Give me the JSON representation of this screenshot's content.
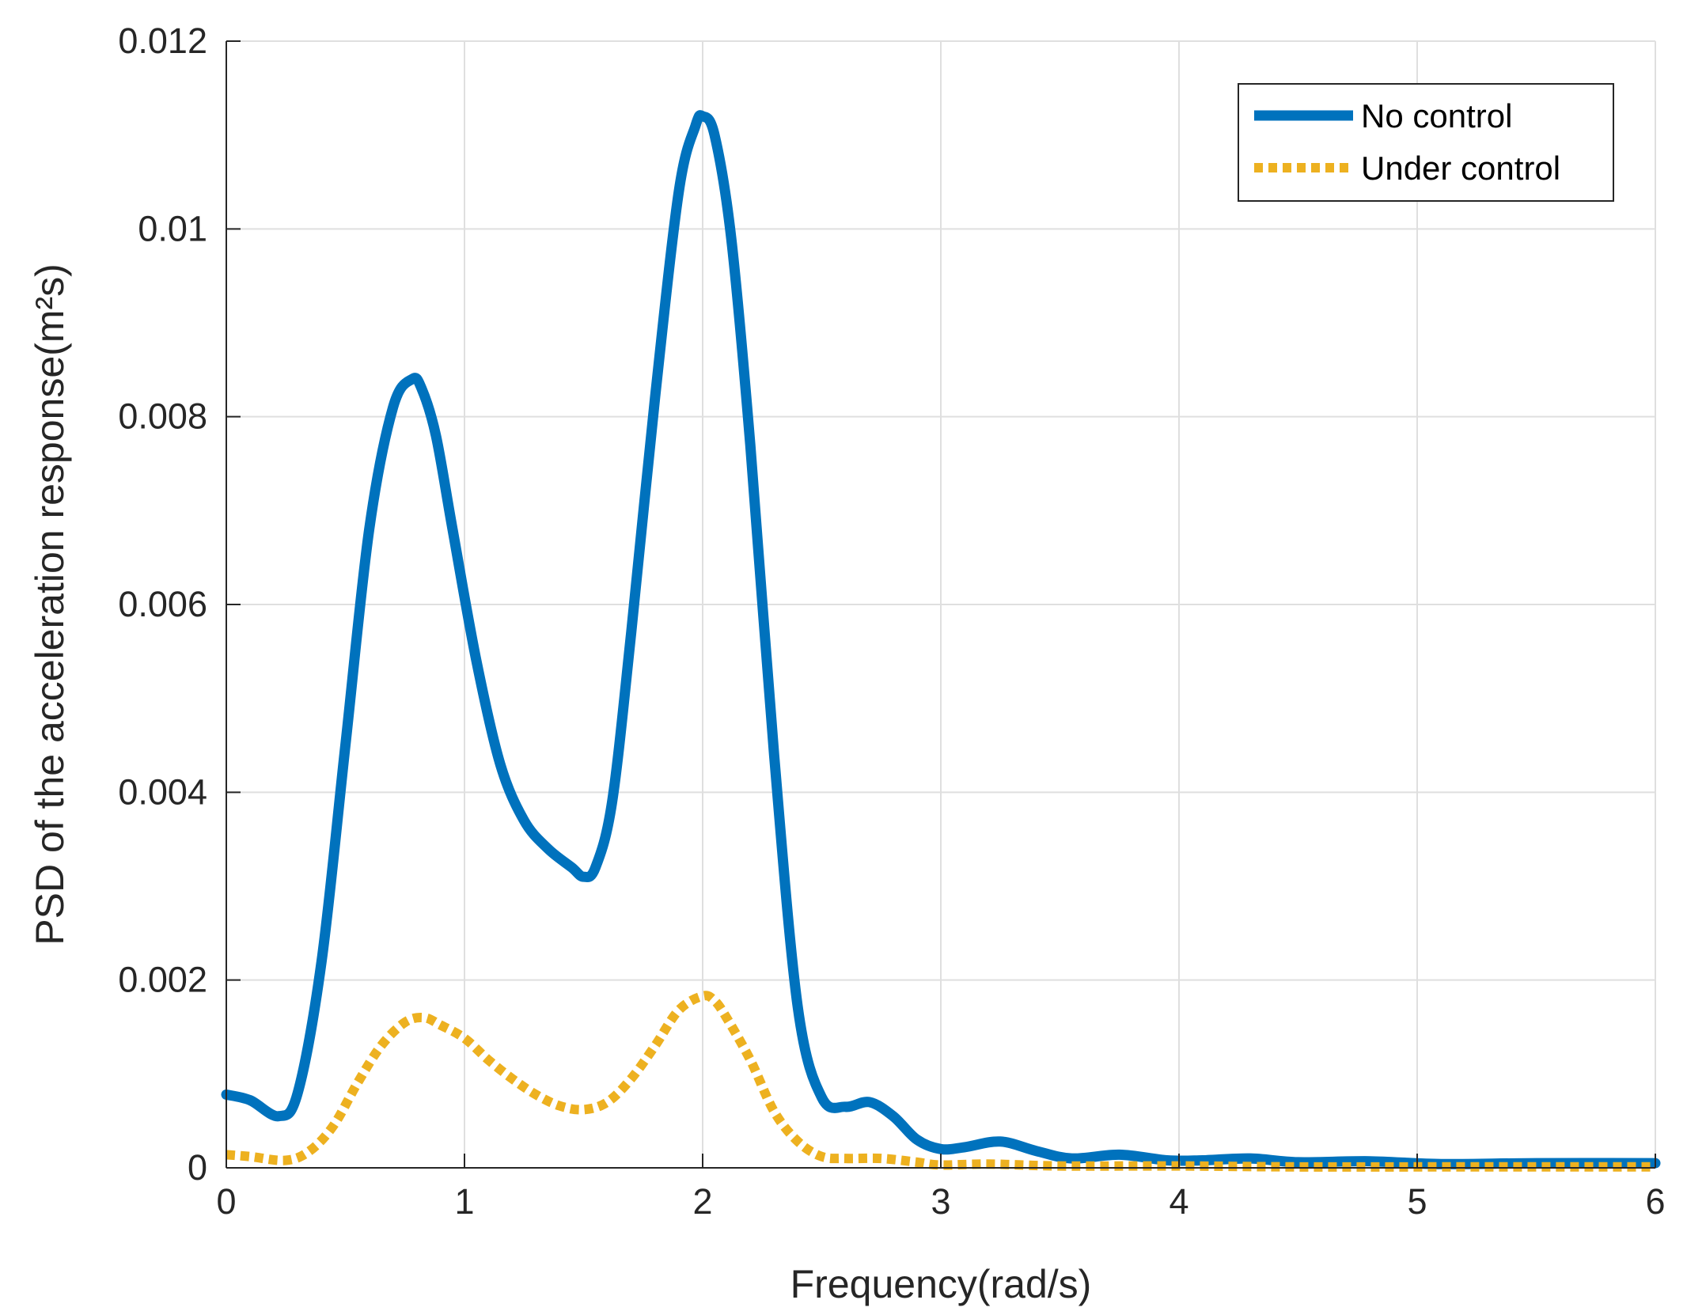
{
  "chart_data": {
    "type": "line",
    "xlabel": "Frequency(rad/s)",
    "ylabel": "PSD of the acceleration response(m²s)",
    "xlim": [
      0,
      6
    ],
    "ylim": [
      0,
      0.012
    ],
    "xticks": [
      0,
      1,
      2,
      3,
      4,
      5,
      6
    ],
    "xtick_labels": [
      "0",
      "1",
      "2",
      "3",
      "4",
      "5",
      "6"
    ],
    "yticks": [
      0,
      0.002,
      0.004,
      0.006,
      0.008,
      0.01,
      0.012
    ],
    "ytick_labels": [
      "0",
      "0.002",
      "0.004",
      "0.006",
      "0.008",
      "0.01",
      "0.012"
    ],
    "grid": true,
    "legend_position": "top-right",
    "series": [
      {
        "name": "No control",
        "color": "#0072BD",
        "style": "solid",
        "x": [
          0,
          0.1,
          0.22,
          0.3,
          0.4,
          0.5,
          0.6,
          0.7,
          0.78,
          0.82,
          0.88,
          0.95,
          1.05,
          1.15,
          1.25,
          1.35,
          1.45,
          1.5,
          1.55,
          1.62,
          1.7,
          1.8,
          1.9,
          1.97,
          2.0,
          2.05,
          2.12,
          2.2,
          2.3,
          2.4,
          2.5,
          2.6,
          2.7,
          2.8,
          2.9,
          3.0,
          3.1,
          3.25,
          3.4,
          3.55,
          3.75,
          3.95,
          4.1,
          4.3,
          4.5,
          4.8,
          5.1,
          5.5,
          6.0
        ],
        "y": [
          0.00078,
          0.00072,
          0.00055,
          0.0008,
          0.0022,
          0.0045,
          0.0068,
          0.0081,
          0.0084,
          0.0083,
          0.0078,
          0.0068,
          0.0054,
          0.0043,
          0.0037,
          0.0034,
          0.0032,
          0.0031,
          0.0032,
          0.0039,
          0.0057,
          0.0082,
          0.0104,
          0.0111,
          0.0112,
          0.011,
          0.0099,
          0.0077,
          0.0044,
          0.0017,
          0.00075,
          0.00065,
          0.0007,
          0.00055,
          0.0003,
          0.0002,
          0.00022,
          0.00028,
          0.00018,
          0.0001,
          0.00014,
          8e-05,
          8e-05,
          0.0001,
          6e-05,
          7e-05,
          4e-05,
          5e-05,
          5e-05
        ]
      },
      {
        "name": "Under control",
        "color": "#EDB120",
        "style": "dotted",
        "x": [
          0,
          0.1,
          0.25,
          0.35,
          0.45,
          0.55,
          0.65,
          0.75,
          0.83,
          0.9,
          1.0,
          1.1,
          1.2,
          1.3,
          1.4,
          1.5,
          1.6,
          1.7,
          1.8,
          1.9,
          2.0,
          2.05,
          2.1,
          2.2,
          2.3,
          2.4,
          2.5,
          2.6,
          2.75,
          2.9,
          3.0,
          3.2,
          3.5,
          4.0,
          4.5,
          5.0,
          5.5,
          6.0
        ],
        "y": [
          0.00014,
          0.00012,
          8e-05,
          0.00018,
          0.00045,
          0.0009,
          0.0013,
          0.00155,
          0.0016,
          0.00152,
          0.00138,
          0.00115,
          0.00095,
          0.00078,
          0.00066,
          0.00062,
          0.0007,
          0.00095,
          0.0013,
          0.00168,
          0.00183,
          0.00178,
          0.0016,
          0.00115,
          0.0006,
          0.00028,
          0.00012,
          0.0001,
          0.0001,
          6e-05,
          3e-05,
          4e-05,
          2e-05,
          2e-05,
          1e-05,
          1e-05,
          1e-05,
          1e-05
        ]
      }
    ]
  }
}
